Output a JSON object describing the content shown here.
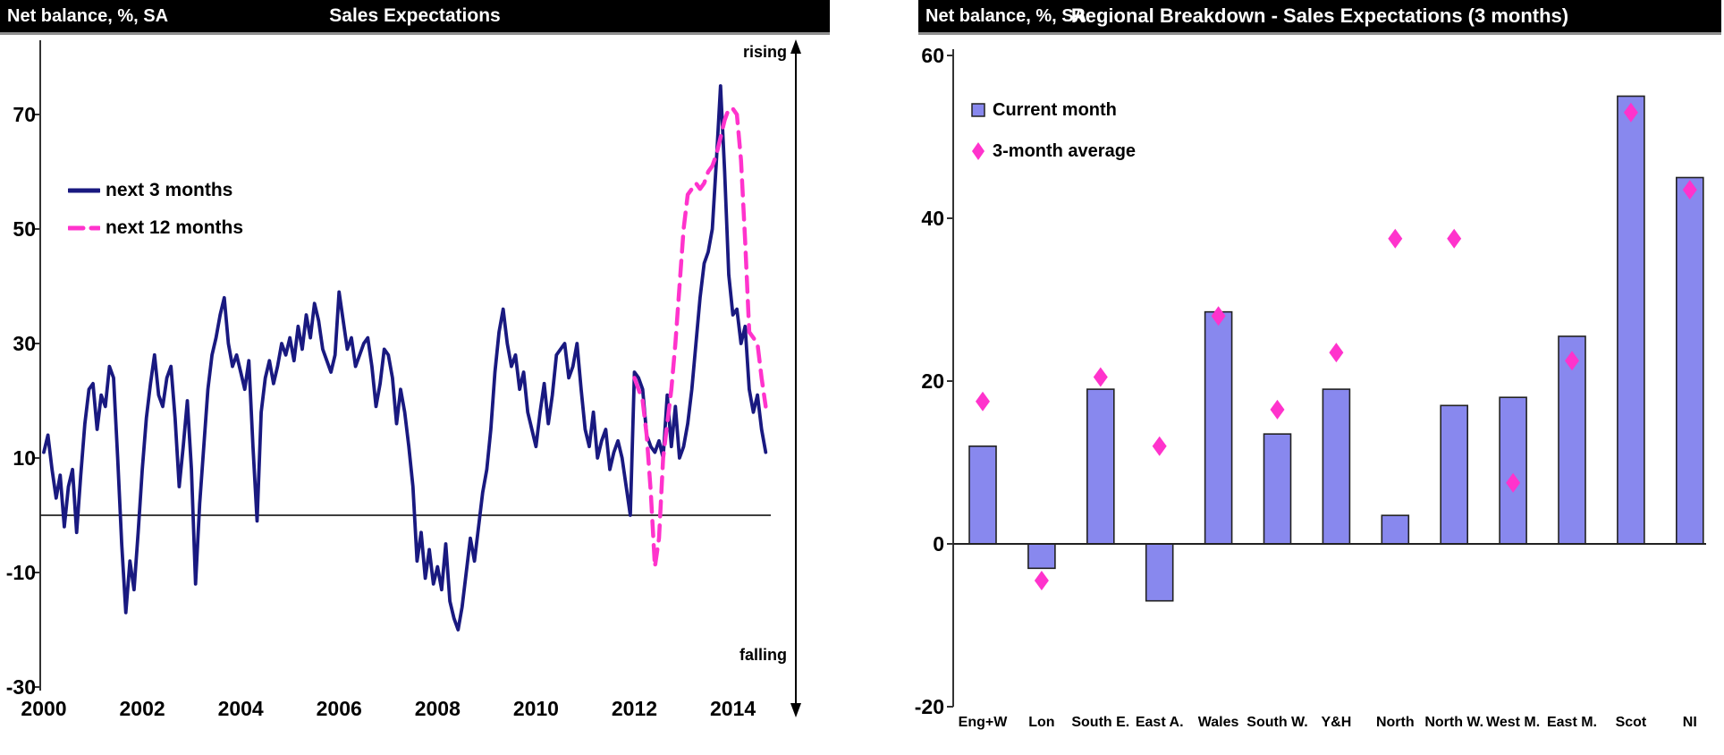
{
  "panels": {
    "left": {
      "corner_label": "Net balance, %, SA",
      "title": "Sales Expectations",
      "rising_label": "rising",
      "falling_label": "falling"
    },
    "right": {
      "corner_label": "Net balance, %, SA",
      "title": "Regional Breakdown - Sales Expectations (3 months)"
    }
  },
  "colors": {
    "next_3_months_line": "#191980",
    "next_12_months_line": "#FF33CC",
    "bar_fill": "#8888EE",
    "bar_border": "#222222",
    "diamond": "#FF33CC",
    "title_bar_bg": "#000000",
    "title_bar_text": "#FFFFFF",
    "axis": "#333333"
  },
  "chart_data": [
    {
      "type": "line",
      "title": "Sales Expectations",
      "ylabel": "Net balance, %, SA",
      "ylim": [
        -30,
        83
      ],
      "yticks": [
        70,
        50,
        30,
        10,
        -10,
        -30
      ],
      "xticks": [
        2000,
        2002,
        2004,
        2006,
        2008,
        2010,
        2012,
        2014
      ],
      "x_resolution": "monthly",
      "annotations": [
        "rising",
        "falling"
      ],
      "zero_line": true,
      "series": [
        {
          "name": "next 3 months",
          "style": "solid",
          "color": "#191980",
          "x_start": 2000.0,
          "x_step": 0.0833333,
          "values": [
            11,
            14,
            8,
            3,
            7,
            -2,
            5,
            8,
            -3,
            7,
            16,
            22,
            23,
            15,
            21,
            19,
            26,
            24,
            10,
            -5,
            -17,
            -8,
            -13,
            -3,
            8,
            17,
            23,
            28,
            21,
            19,
            24,
            26,
            17,
            5,
            12,
            20,
            8,
            -12,
            2,
            12,
            22,
            28,
            31,
            35,
            38,
            30,
            26,
            28,
            25,
            22,
            27,
            12,
            -1,
            18,
            24,
            27,
            23,
            26,
            30,
            28,
            31,
            27,
            33,
            29,
            35,
            31,
            37,
            34,
            29,
            27,
            25,
            28,
            39,
            34,
            29,
            31,
            26,
            28,
            30,
            31,
            26,
            19,
            23,
            29,
            28,
            24,
            16,
            22,
            18,
            12,
            5,
            -8,
            -3,
            -11,
            -6,
            -12,
            -9,
            -13,
            -5,
            -15,
            -18,
            -20,
            -16,
            -10,
            -4,
            -8,
            -2,
            4,
            8,
            15,
            25,
            32,
            36,
            30,
            26,
            28,
            22,
            25,
            18,
            15,
            12,
            18,
            23,
            16,
            21,
            28,
            29,
            30,
            24,
            26,
            30,
            22,
            15,
            12,
            18,
            10,
            13,
            15,
            8,
            11,
            13,
            10,
            5,
            0,
            25,
            24,
            22,
            14,
            12,
            11,
            13,
            10,
            21,
            12,
            19,
            10,
            12,
            16,
            22,
            30,
            38,
            44,
            46,
            50,
            62,
            75,
            60,
            42,
            35,
            36,
            30,
            33,
            22,
            18,
            21,
            15,
            11
          ]
        },
        {
          "name": "next 12 months",
          "style": "dashed",
          "color": "#FF33CC",
          "x_start": 2012.0,
          "x_step": 0.0833333,
          "values": [
            24,
            22,
            20,
            14,
            4,
            -9,
            -4,
            10,
            16,
            22,
            30,
            40,
            50,
            56,
            57,
            58,
            57,
            58,
            60,
            61,
            63,
            66,
            69,
            71,
            71,
            70,
            62,
            48,
            32,
            31,
            30,
            24,
            19
          ]
        }
      ]
    },
    {
      "type": "bar",
      "title": "Regional Breakdown - Sales Expectations (3 months)",
      "ylabel": "Net balance, %, SA",
      "ylim": [
        -20,
        60
      ],
      "yticks": [
        60,
        40,
        20,
        0,
        -20
      ],
      "categories": [
        "Eng+W",
        "Lon",
        "South E.",
        "East A.",
        "Wales",
        "South W.",
        "Y&H",
        "North",
        "North W.",
        "West M.",
        "East M.",
        "Scot",
        "NI"
      ],
      "series": [
        {
          "name": "Current month",
          "type": "bar",
          "color": "#8888EE",
          "values": [
            12,
            -3,
            19,
            -7,
            28.5,
            13.5,
            19,
            3.5,
            17,
            18,
            25.5,
            55,
            45
          ]
        },
        {
          "name": "3-month average",
          "type": "scatter",
          "marker": "diamond",
          "color": "#FF33CC",
          "values": [
            17.5,
            -4.5,
            20.5,
            12,
            28,
            16.5,
            23.5,
            37.5,
            37.5,
            7.5,
            22.5,
            53,
            43.5
          ]
        }
      ],
      "legend_position": "top-left"
    }
  ]
}
